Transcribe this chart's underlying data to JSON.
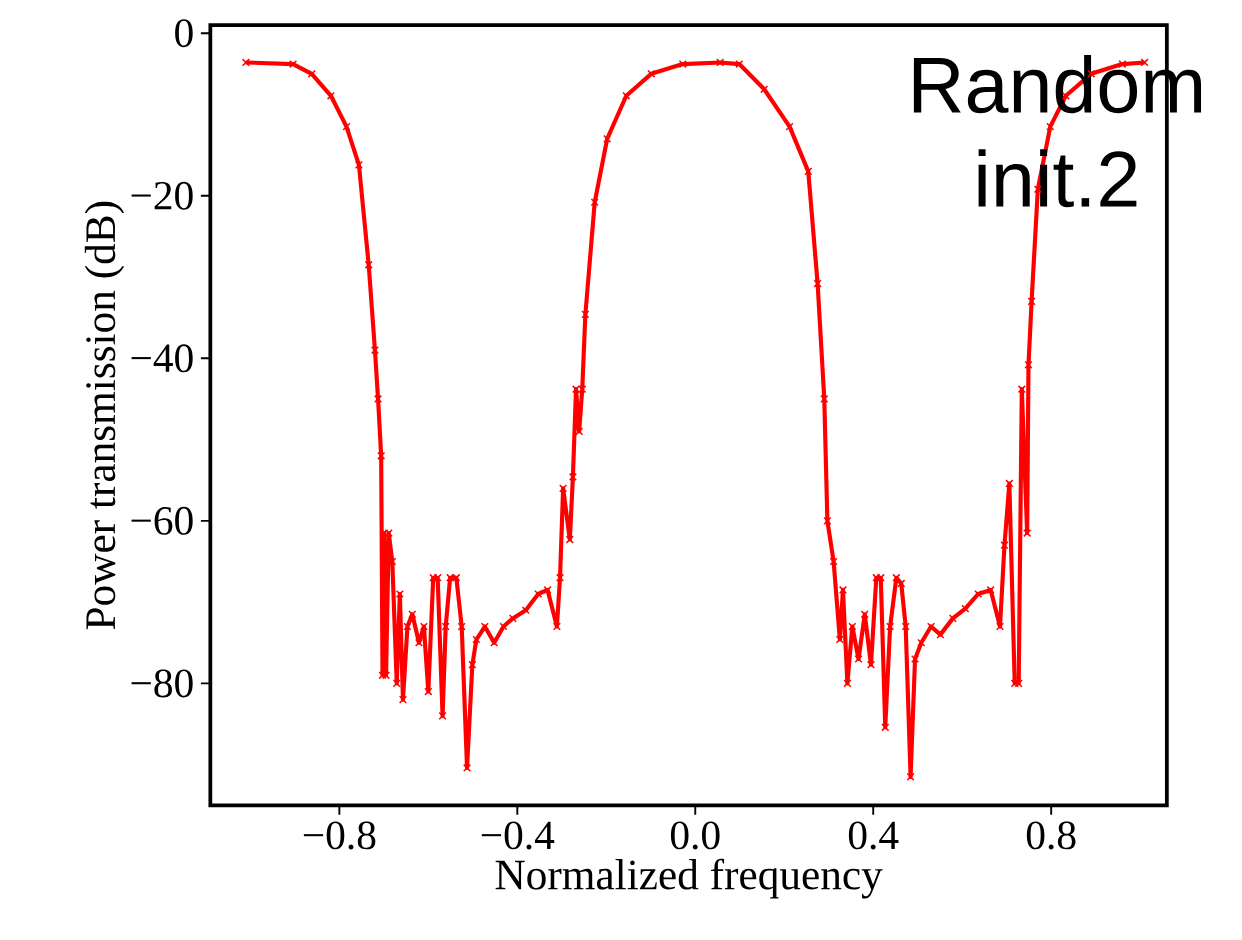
{
  "chart_data": {
    "type": "line",
    "xlabel": "Normalized frequency",
    "ylabel": "Power transmission (dB)",
    "annotations": [
      "Random init.2"
    ],
    "xlim": [
      -1.09,
      1.06
    ],
    "ylim": [
      -95,
      1
    ],
    "xticks": [
      {
        "value": -0.8,
        "label": "−0.8"
      },
      {
        "value": -0.4,
        "label": "−0.4"
      },
      {
        "value": 0.0,
        "label": "0.0"
      },
      {
        "value": 0.4,
        "label": "0.4"
      },
      {
        "value": 0.8,
        "label": "0.8"
      }
    ],
    "yticks": [
      {
        "value": -80,
        "label": "−80"
      },
      {
        "value": -60,
        "label": "−60"
      },
      {
        "value": -40,
        "label": "−40"
      },
      {
        "value": -20,
        "label": "−20"
      },
      {
        "value": 0,
        "label": "0"
      }
    ],
    "marker": "cross",
    "line_style": "solid",
    "grid": false,
    "series": [
      {
        "color": "#ff0000",
        "x": [
          -1.01,
          -0.904,
          -0.862,
          -0.819,
          -0.784,
          -0.756,
          -0.734,
          -0.72,
          -0.713,
          -0.706,
          -0.703,
          -0.699,
          -0.695,
          -0.689,
          -0.681,
          -0.671,
          -0.664,
          -0.657,
          -0.647,
          -0.636,
          -0.621,
          -0.61,
          -0.6,
          -0.589,
          -0.579,
          -0.568,
          -0.561,
          -0.551,
          -0.537,
          -0.525,
          -0.513,
          -0.501,
          -0.492,
          -0.473,
          -0.452,
          -0.431,
          -0.41,
          -0.381,
          -0.353,
          -0.332,
          -0.311,
          -0.304,
          -0.297,
          -0.282,
          -0.275,
          -0.268,
          -0.261,
          -0.254,
          -0.247,
          -0.226,
          -0.198,
          -0.155,
          -0.099,
          -0.028,
          0.056,
          0.099,
          0.155,
          0.212,
          0.254,
          0.275,
          0.29,
          0.297,
          0.311,
          0.325,
          0.332,
          0.342,
          0.353,
          0.367,
          0.381,
          0.395,
          0.407,
          0.417,
          0.427,
          0.438,
          0.452,
          0.463,
          0.473,
          0.484,
          0.494,
          0.508,
          0.53,
          0.551,
          0.579,
          0.607,
          0.636,
          0.664,
          0.685,
          0.695,
          0.706,
          0.718,
          0.727,
          0.734,
          0.746,
          0.749,
          0.756,
          0.77,
          0.798,
          0.833,
          0.89,
          0.96,
          1.01
        ],
        "values": [
          -3.6,
          -3.8,
          -5,
          -7.7,
          -11.5,
          -16.2,
          -28.5,
          -39,
          -45,
          -52,
          -79,
          -61.5,
          -79,
          -61.5,
          -65,
          -80,
          -69,
          -82,
          -73,
          -71.5,
          -75,
          -73,
          -81,
          -67,
          -67,
          -84,
          -73,
          -67,
          -67,
          -73,
          -90.4,
          -77.7,
          -74.6,
          -73,
          -75,
          -73,
          -72,
          -71,
          -69,
          -68.5,
          -73,
          -67,
          -56,
          -62.3,
          -54.6,
          -43.8,
          -49,
          -43.8,
          -34.6,
          -20.8,
          -13,
          -7.7,
          -5,
          -3.8,
          -3.6,
          -3.8,
          -6.9,
          -11.5,
          -17,
          -30.8,
          -45,
          -60,
          -65,
          -74.6,
          -68.5,
          -80,
          -73,
          -77,
          -71.5,
          -77.7,
          -67,
          -67,
          -85.4,
          -73,
          -67,
          -67.7,
          -73,
          -91.5,
          -77,
          -75,
          -73,
          -74,
          -72,
          -70.8,
          -69,
          -68.5,
          -73,
          -63,
          -55.4,
          -80,
          -80,
          -43.8,
          -61.5,
          -40.8,
          -33,
          -19.2,
          -11.5,
          -7.7,
          -5,
          -3.8,
          -3.6
        ]
      }
    ]
  }
}
